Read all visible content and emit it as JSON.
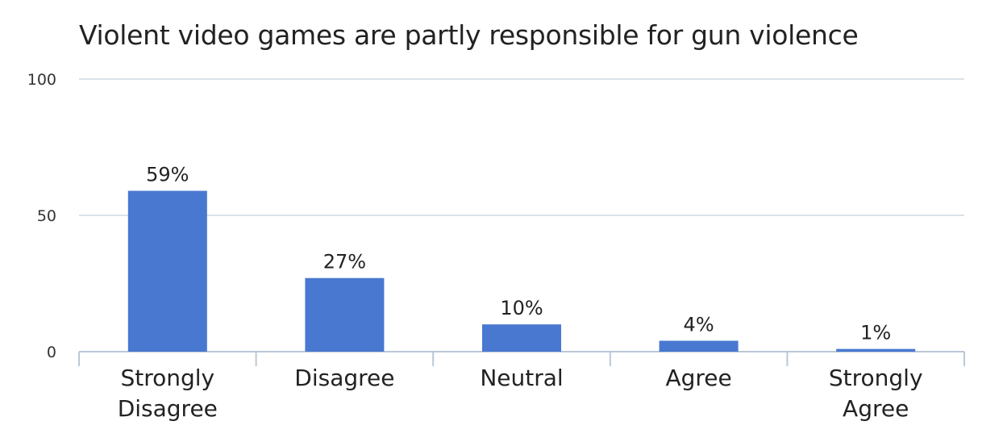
{
  "chart_data": {
    "type": "bar",
    "title": "Violent video games are partly responsible for gun violence",
    "categories": [
      [
        "Strongly",
        "Disagree"
      ],
      [
        "Disagree"
      ],
      [
        "Neutral"
      ],
      [
        "Agree"
      ],
      [
        "Strongly",
        "Agree"
      ]
    ],
    "values": [
      59,
      27,
      10,
      4,
      1
    ],
    "data_labels": [
      "59%",
      "27%",
      "10%",
      "4%",
      "1%"
    ],
    "y_ticks": [
      0,
      50,
      100
    ],
    "y_tick_labels": [
      "0",
      "50",
      "100"
    ],
    "ylim": [
      0,
      100
    ],
    "grid": true,
    "legend": "none",
    "colors": {
      "bar": "#4878d0",
      "grid": "#cfd9e3",
      "axis": "#b9c8d6",
      "text": "#222222",
      "tick_text": "#333333"
    }
  }
}
